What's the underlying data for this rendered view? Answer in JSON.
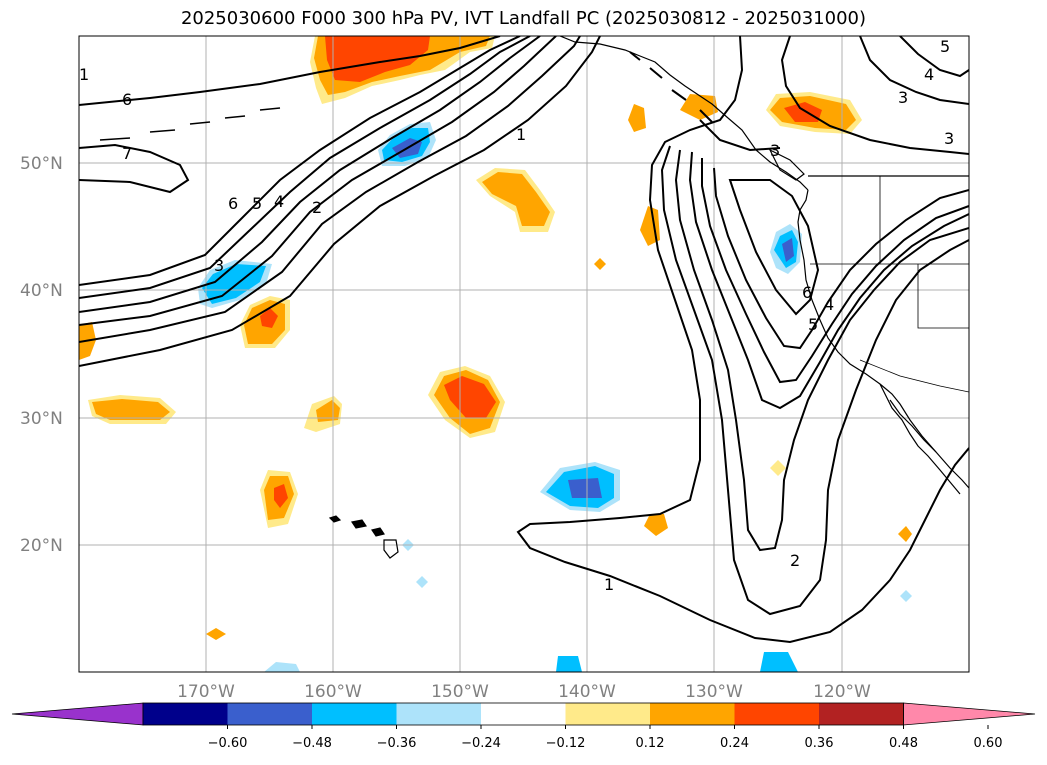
{
  "title": "2025030600 F000 300 hPa PV, IVT Landfall PC (2025030812 - 2025031000)",
  "lat_labels": [
    "50°N",
    "40°N",
    "30°N",
    "20°N"
  ],
  "lon_labels": [
    "170°W",
    "160°W",
    "150°W",
    "140°W",
    "130°W",
    "120°W"
  ],
  "colorbar": {
    "ticks": [
      "−0.60",
      "−0.48",
      "−0.36",
      "−0.24",
      "−0.12",
      "0.12",
      "0.24",
      "0.36",
      "0.48",
      "0.60"
    ],
    "colors": [
      "#9932CC",
      "#00008B",
      "#3A5FCD",
      "#00BFFF",
      "#ADE3FA",
      "#FFFFFF",
      "#FFEA8A",
      "#FFA500",
      "#FF4500",
      "#B22222",
      "#FF88AA"
    ]
  },
  "fill_colors": {
    "neg_light": "#ADE3FA",
    "neg_mid": "#00BFFF",
    "neg_dark": "#3A5FCD",
    "pos_light": "#FFEA8A",
    "pos_mid": "#FFA500",
    "pos_dark": "#FF4500"
  },
  "contour_labels": [
    "6",
    "7",
    "6",
    "5",
    "4",
    "2",
    "1",
    "3",
    "1",
    "3",
    "2",
    "3",
    "6",
    "5",
    "4",
    "4",
    "3",
    "5",
    "2",
    "1"
  ]
}
